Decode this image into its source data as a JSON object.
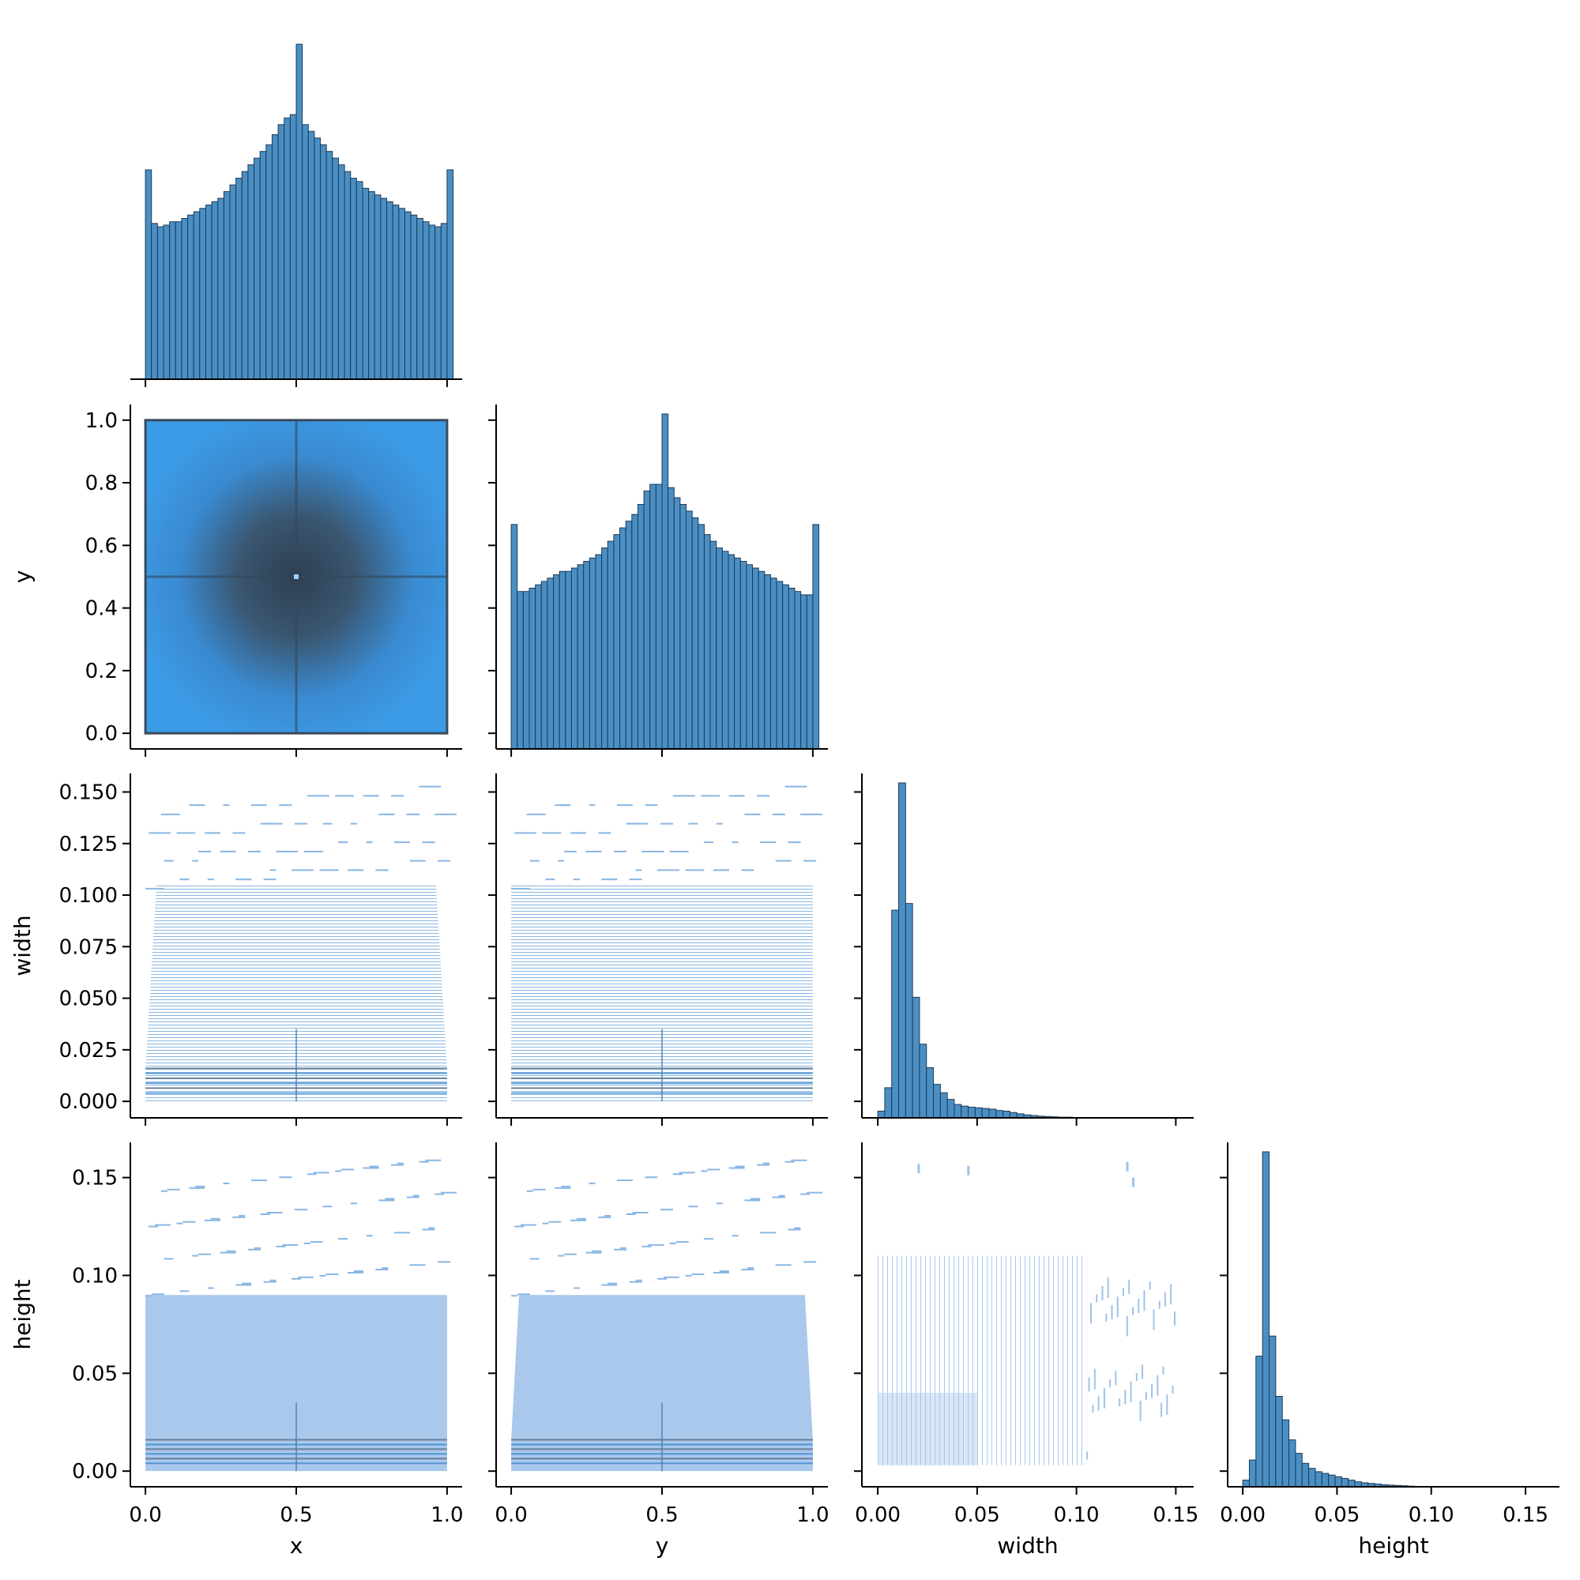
{
  "chart_data": {
    "type": "pairplot",
    "variables": [
      "x",
      "y",
      "width",
      "height"
    ],
    "corner": true,
    "grid": false,
    "colors": {
      "hist_bar": "#4a8fc4",
      "hist_edge": "#1e3a55",
      "heat_light": "#a9c8ec",
      "heat_mid": "#3f9be0",
      "heat_dense": "#3a4a5c",
      "axis": "#000000"
    },
    "axes": {
      "x": {
        "label": "x",
        "range": [
          -0.05,
          1.05
        ],
        "ticks": [
          0.0,
          0.5,
          1.0
        ],
        "tick_labels": [
          "0.0",
          "0.5",
          "1.0"
        ]
      },
      "y": {
        "label": "y",
        "range": [
          -0.05,
          1.05
        ],
        "ticks": [
          0.0,
          0.5,
          1.0
        ],
        "tick_labels": [
          "0.0",
          "0.5",
          "1.0"
        ],
        "row_ticks": [
          0.0,
          0.2,
          0.4,
          0.6,
          0.8,
          1.0
        ],
        "row_tick_labels": [
          "0.0",
          "0.2",
          "0.4",
          "0.6",
          "0.8",
          "1.0"
        ]
      },
      "width": {
        "label": "width",
        "range": [
          -0.008,
          0.159
        ],
        "ticks": [
          0.0,
          0.05,
          0.1,
          0.15
        ],
        "tick_labels": [
          "0.00",
          "0.05",
          "0.10",
          "0.15"
        ],
        "row_ticks": [
          0.0,
          0.025,
          0.05,
          0.075,
          0.1,
          0.125,
          0.15
        ],
        "row_tick_labels": [
          "0.000",
          "0.025",
          "0.050",
          "0.075",
          "0.100",
          "0.125",
          "0.150"
        ]
      },
      "height": {
        "label": "height",
        "range": [
          -0.008,
          0.168
        ],
        "ticks": [
          0.0,
          0.05,
          0.1,
          0.15
        ],
        "tick_labels": [
          "0.00",
          "0.05",
          "0.10",
          "0.15"
        ],
        "row_ticks": [
          0.0,
          0.05,
          0.1,
          0.15
        ],
        "row_tick_labels": [
          "0.00",
          "0.05",
          "0.10",
          "0.15"
        ]
      }
    },
    "histograms": {
      "x": {
        "bin_start": 0.0,
        "bin_width": 0.02,
        "values": [
          0.625,
          0.465,
          0.455,
          0.46,
          0.47,
          0.47,
          0.48,
          0.49,
          0.5,
          0.51,
          0.52,
          0.53,
          0.54,
          0.56,
          0.58,
          0.6,
          0.62,
          0.64,
          0.66,
          0.68,
          0.7,
          0.73,
          0.76,
          0.78,
          0.79,
          1.0,
          0.76,
          0.74,
          0.72,
          0.7,
          0.68,
          0.66,
          0.64,
          0.62,
          0.6,
          0.59,
          0.57,
          0.56,
          0.55,
          0.54,
          0.53,
          0.52,
          0.51,
          0.5,
          0.49,
          0.48,
          0.47,
          0.46,
          0.455,
          0.465,
          0.625
        ]
      },
      "y": {
        "bin_start": 0.0,
        "bin_width": 0.02,
        "values": [
          0.67,
          0.47,
          0.47,
          0.48,
          0.49,
          0.5,
          0.51,
          0.52,
          0.53,
          0.53,
          0.54,
          0.55,
          0.56,
          0.57,
          0.58,
          0.6,
          0.62,
          0.64,
          0.66,
          0.68,
          0.7,
          0.73,
          0.77,
          0.79,
          0.79,
          1.0,
          0.78,
          0.75,
          0.73,
          0.71,
          0.69,
          0.67,
          0.64,
          0.62,
          0.6,
          0.59,
          0.58,
          0.57,
          0.56,
          0.55,
          0.54,
          0.53,
          0.52,
          0.51,
          0.5,
          0.49,
          0.48,
          0.47,
          0.46,
          0.46,
          0.67
        ]
      },
      "width": {
        "bin_start": 0.0,
        "bin_width": 0.0035,
        "values": [
          0.02,
          0.09,
          0.62,
          1.0,
          0.64,
          0.36,
          0.22,
          0.15,
          0.1,
          0.075,
          0.055,
          0.04,
          0.035,
          0.032,
          0.03,
          0.028,
          0.026,
          0.022,
          0.02,
          0.016,
          0.012,
          0.009,
          0.007,
          0.005,
          0.004,
          0.003,
          0.002,
          0.002,
          0.001,
          0.001
        ]
      },
      "height": {
        "bin_start": 0.0,
        "bin_width": 0.0035,
        "values": [
          0.02,
          0.08,
          0.39,
          1.0,
          0.45,
          0.27,
          0.2,
          0.14,
          0.1,
          0.07,
          0.055,
          0.045,
          0.04,
          0.035,
          0.03,
          0.025,
          0.02,
          0.015,
          0.012,
          0.01,
          0.008,
          0.006,
          0.005,
          0.004,
          0.003,
          0.002,
          0.001,
          0.001
        ]
      }
    }
  }
}
